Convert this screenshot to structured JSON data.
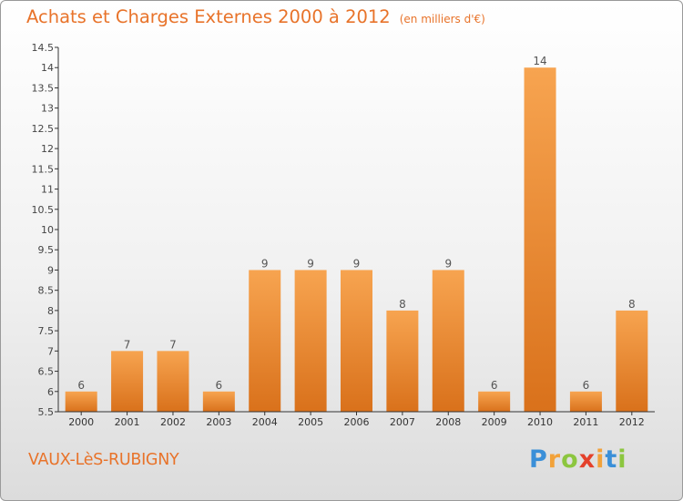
{
  "title": "Achats et Charges Externes 2000 à 2012",
  "unit": "(en milliers d'€)",
  "commune": "VAUX-LèS-RUBIGNY",
  "logo": {
    "letters": [
      "P",
      "r",
      "o",
      "x",
      "i",
      "t",
      "i"
    ],
    "colors": [
      "#3a8fd8",
      "#f2a23a",
      "#8cc63f",
      "#e4412b",
      "#f2a23a",
      "#3a8fd8",
      "#8cc63f"
    ]
  },
  "colors": {
    "bar_light": "#f7a450",
    "bar_dark": "#d9711b",
    "accent": "#e8732a"
  },
  "chart_data": {
    "type": "bar",
    "title": "Achats et Charges Externes 2000 à 2012",
    "unit": "(en milliers d'€)",
    "categories": [
      "2000",
      "2001",
      "2002",
      "2003",
      "2004",
      "2005",
      "2006",
      "2007",
      "2008",
      "2009",
      "2010",
      "2011",
      "2012"
    ],
    "values": [
      6,
      7,
      7,
      6,
      9,
      9,
      9,
      8,
      9,
      6,
      14,
      6,
      8
    ],
    "ylim": [
      5.5,
      14.5
    ],
    "yticks": [
      "5.5",
      "6",
      "6.5",
      "7",
      "7.5",
      "8",
      "8.5",
      "9",
      "9.5",
      "10",
      "10.5",
      "11",
      "11.5",
      "12",
      "12.5",
      "13",
      "13.5",
      "14",
      "14.5"
    ],
    "grid": false
  }
}
